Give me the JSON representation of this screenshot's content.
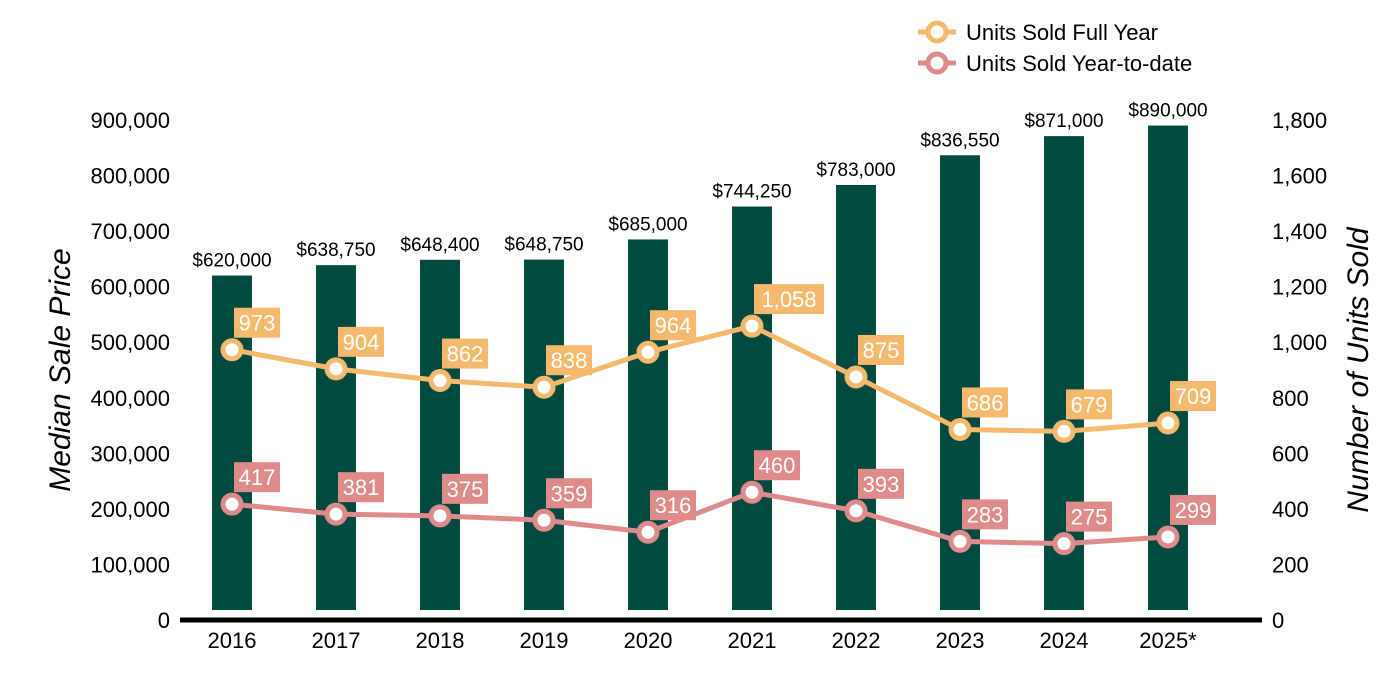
{
  "chart_data": {
    "type": "bar",
    "title": "",
    "categories": [
      "2016",
      "2017",
      "2018",
      "2019",
      "2020",
      "2021",
      "2022",
      "2023",
      "2024",
      "2025*"
    ],
    "bar_series": {
      "name": "",
      "values": [
        620000,
        638750,
        648400,
        648750,
        685000,
        744250,
        783000,
        836550,
        871000,
        890000
      ],
      "labels": [
        "$620,000",
        "$638,750",
        "$648,400",
        "$648,750",
        "$685,000",
        "$744,250",
        "$783,000",
        "$836,550",
        "$871,000",
        "$890,000"
      ],
      "color": "#004a3f"
    },
    "line_series": [
      {
        "name": "Units Sold Full Year",
        "values": [
          973,
          904,
          862,
          838,
          964,
          1058,
          875,
          686,
          679,
          709
        ],
        "labels": [
          "973",
          "904",
          "862",
          "838",
          "964",
          "1,058",
          "875",
          "686",
          "679",
          "709"
        ],
        "color": "#f5b96e"
      },
      {
        "name": "Units Sold Year-to-date",
        "values": [
          417,
          381,
          375,
          359,
          316,
          460,
          393,
          283,
          275,
          299
        ],
        "labels": [
          "417",
          "381",
          "375",
          "359",
          "316",
          "460",
          "393",
          "283",
          "275",
          "299"
        ],
        "color": "#e08b8b"
      }
    ],
    "ylabel": "Median Sale Price",
    "ylim": [
      0,
      900000
    ],
    "yticks": [
      0,
      100000,
      200000,
      300000,
      400000,
      500000,
      600000,
      700000,
      800000,
      900000
    ],
    "ytick_labels": [
      "0",
      "100,000",
      "200,000",
      "300,000",
      "400,000",
      "500,000",
      "600,000",
      "700,000",
      "800,000",
      "900,000"
    ],
    "y2label": "Number of Units Sold",
    "y2lim": [
      0,
      1800
    ],
    "y2ticks": [
      0,
      200,
      400,
      600,
      800,
      1000,
      1200,
      1400,
      1600,
      1800
    ],
    "y2tick_labels": [
      "0",
      "200",
      "400",
      "600",
      "800",
      "1,000",
      "1,200",
      "1,400",
      "1,600",
      "1,800"
    ],
    "legend_position": "top-right",
    "grid": false
  }
}
